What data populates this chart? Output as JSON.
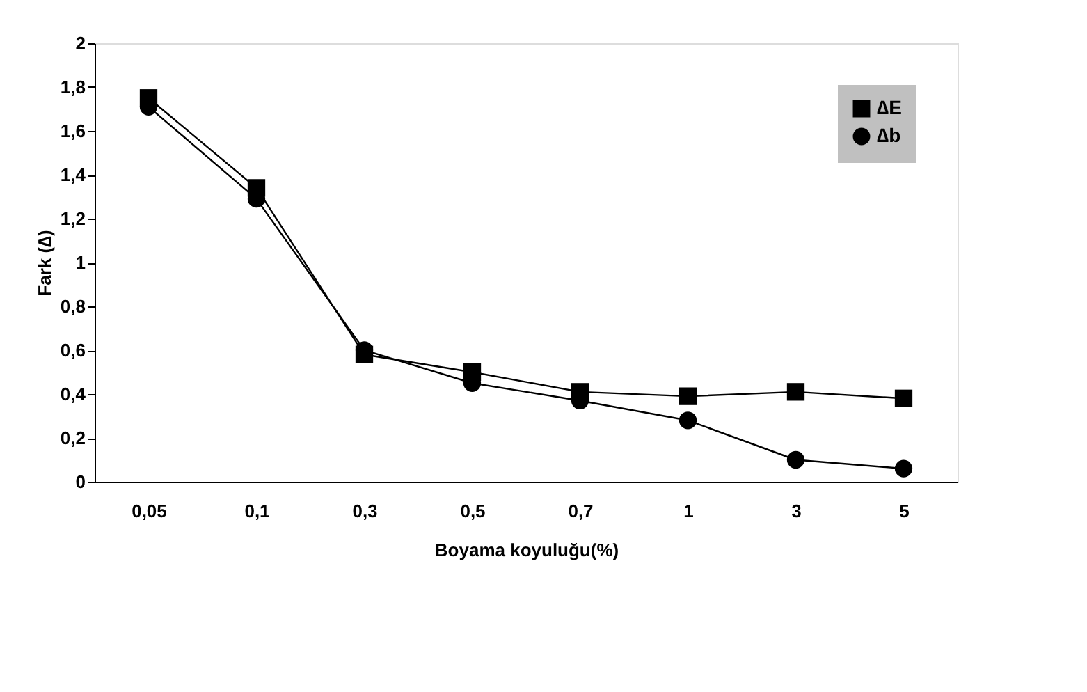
{
  "chart_data": {
    "type": "line",
    "xlabel": "Boyama koyuluğu(%)",
    "ylabel": "Fark (∆)",
    "categories": [
      "0,05",
      "0,1",
      "0,3",
      "0,5",
      "0,7",
      "1",
      "3",
      "5"
    ],
    "series": [
      {
        "name": "∆E",
        "color": "#000000",
        "marker": "square",
        "values": [
          1.75,
          1.34,
          0.58,
          0.5,
          0.41,
          0.39,
          0.41,
          0.38
        ]
      },
      {
        "name": "∆b",
        "color": "#000000",
        "marker": "circle",
        "values": [
          1.71,
          1.29,
          0.6,
          0.45,
          0.37,
          0.28,
          0.1,
          0.06
        ]
      }
    ],
    "ylim": [
      0,
      2
    ],
    "yticks": [
      0,
      {
        "value": 0.2,
        "label": "0,2"
      },
      {
        "value": 0.4,
        "label": "0,4"
      },
      {
        "value": 0.6,
        "label": "0,6"
      },
      {
        "value": 0.8,
        "label": "0,8"
      },
      1,
      {
        "value": 1.2,
        "label": "1,2"
      },
      {
        "value": 1.4,
        "label": "1,4"
      },
      {
        "value": 1.6,
        "label": "1,6"
      },
      {
        "value": 1.8,
        "label": "1,8"
      },
      2
    ],
    "grid": false,
    "legend": "top right",
    "line_style": "solid"
  }
}
